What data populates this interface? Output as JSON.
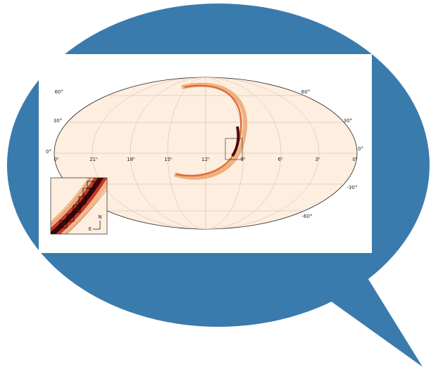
{
  "map": {
    "lat_labels_left": [
      "60°",
      "30°",
      "0°"
    ],
    "lat_labels_right": [
      "60°",
      "30°",
      "0°",
      "-30°",
      "-60°"
    ],
    "ra_labels": [
      "0ʰ",
      "21ʰ",
      "18ʰ",
      "15ʰ",
      "12ʰ",
      "9ʰ",
      "6ʰ",
      "3ʰ",
      "0ʰ"
    ],
    "compass": {
      "north": "N",
      "east": "E"
    }
  }
}
